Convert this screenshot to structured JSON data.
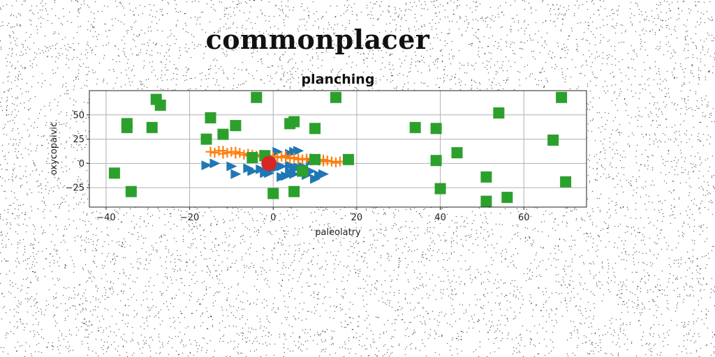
{
  "page": {
    "title": "commonplacer"
  },
  "chart_data": {
    "type": "scatter",
    "title": "planching",
    "xlabel": "paleolatry",
    "ylabel": "oxycopaivic",
    "xlim": [
      -44,
      75
    ],
    "ylim": [
      -45,
      75
    ],
    "xticks": [
      -40,
      -20,
      0,
      20,
      40,
      60
    ],
    "yticks": [
      -25,
      0,
      25,
      50
    ],
    "grid": true,
    "colors": {
      "blue": "#1f77b4",
      "orange": "#ff7f0e",
      "green": "#2ca02c",
      "red": "#d62728"
    },
    "series": [
      {
        "color": "#1f77b4",
        "marker": "triangle-right",
        "points": [
          [
            -16,
            -2
          ],
          [
            -14,
            0
          ],
          [
            -10,
            -3
          ],
          [
            -9,
            -11
          ],
          [
            -6,
            -5
          ],
          [
            -5,
            -8
          ],
          [
            -3,
            -6
          ],
          [
            -1,
            -10
          ],
          [
            0,
            -5
          ],
          [
            1,
            -4
          ],
          [
            1,
            12
          ],
          [
            2,
            -3
          ],
          [
            3,
            -13
          ],
          [
            4,
            -9
          ],
          [
            5,
            -11
          ],
          [
            5,
            -6
          ],
          [
            5,
            12
          ],
          [
            6,
            -4
          ],
          [
            6,
            13
          ],
          [
            4,
            10
          ],
          [
            7,
            -9
          ],
          [
            7,
            -3
          ],
          [
            8,
            -12
          ],
          [
            9,
            -8
          ],
          [
            10,
            -16
          ],
          [
            11,
            -12
          ],
          [
            12,
            -11
          ],
          [
            9,
            2
          ],
          [
            4,
            -2
          ],
          [
            -2,
            -10
          ],
          [
            2,
            -14
          ]
        ]
      },
      {
        "color": "#ff7f0e",
        "marker": "plus",
        "points": [
          [
            -15,
            12
          ],
          [
            -14,
            11
          ],
          [
            -13,
            13
          ],
          [
            -12,
            10
          ],
          [
            -11,
            11
          ],
          [
            -10,
            12
          ],
          [
            -9,
            10
          ],
          [
            -8,
            11
          ],
          [
            -7,
            9
          ],
          [
            -6,
            10
          ],
          [
            -5,
            9
          ],
          [
            -4,
            8
          ],
          [
            -3,
            9
          ],
          [
            -2,
            7
          ],
          [
            -1,
            8
          ],
          [
            0,
            7
          ],
          [
            1,
            6
          ],
          [
            2,
            7
          ],
          [
            3,
            6
          ],
          [
            4,
            5
          ],
          [
            5,
            6
          ],
          [
            6,
            5
          ],
          [
            7,
            4
          ],
          [
            8,
            5
          ],
          [
            9,
            3
          ],
          [
            10,
            4
          ],
          [
            11,
            3
          ],
          [
            12,
            2
          ],
          [
            13,
            3
          ],
          [
            14,
            2
          ],
          [
            15,
            1
          ],
          [
            16,
            2
          ],
          [
            -12,
            13
          ],
          [
            -9,
            12
          ],
          [
            -6,
            8
          ],
          [
            -3,
            7
          ],
          [
            0,
            6
          ],
          [
            3,
            8
          ],
          [
            6,
            4
          ],
          [
            9,
            5
          ],
          [
            12,
            4
          ]
        ]
      },
      {
        "color": "#2ca02c",
        "marker": "square",
        "points": [
          [
            -38,
            -10
          ],
          [
            -35,
            41
          ],
          [
            -35,
            37
          ],
          [
            -34,
            -29
          ],
          [
            -28,
            66
          ],
          [
            -29,
            37
          ],
          [
            -27,
            60
          ],
          [
            -16,
            25
          ],
          [
            -15,
            47
          ],
          [
            -12,
            30
          ],
          [
            -9,
            39
          ],
          [
            -5,
            6
          ],
          [
            -4,
            68
          ],
          [
            -2,
            8
          ],
          [
            0,
            -31
          ],
          [
            4,
            41
          ],
          [
            5,
            43
          ],
          [
            5,
            -29
          ],
          [
            7,
            -8
          ],
          [
            10,
            36
          ],
          [
            15,
            68
          ],
          [
            18,
            4
          ],
          [
            34,
            37
          ],
          [
            39,
            36
          ],
          [
            39,
            3
          ],
          [
            40,
            -26
          ],
          [
            44,
            11
          ],
          [
            51,
            -14
          ],
          [
            51,
            -39
          ],
          [
            54,
            52
          ],
          [
            56,
            -35
          ],
          [
            67,
            24
          ],
          [
            69,
            68
          ],
          [
            70,
            -19
          ],
          [
            10,
            4
          ]
        ]
      },
      {
        "color": "#d62728",
        "marker": "circle",
        "points": [
          [
            -1,
            0
          ]
        ]
      }
    ]
  }
}
